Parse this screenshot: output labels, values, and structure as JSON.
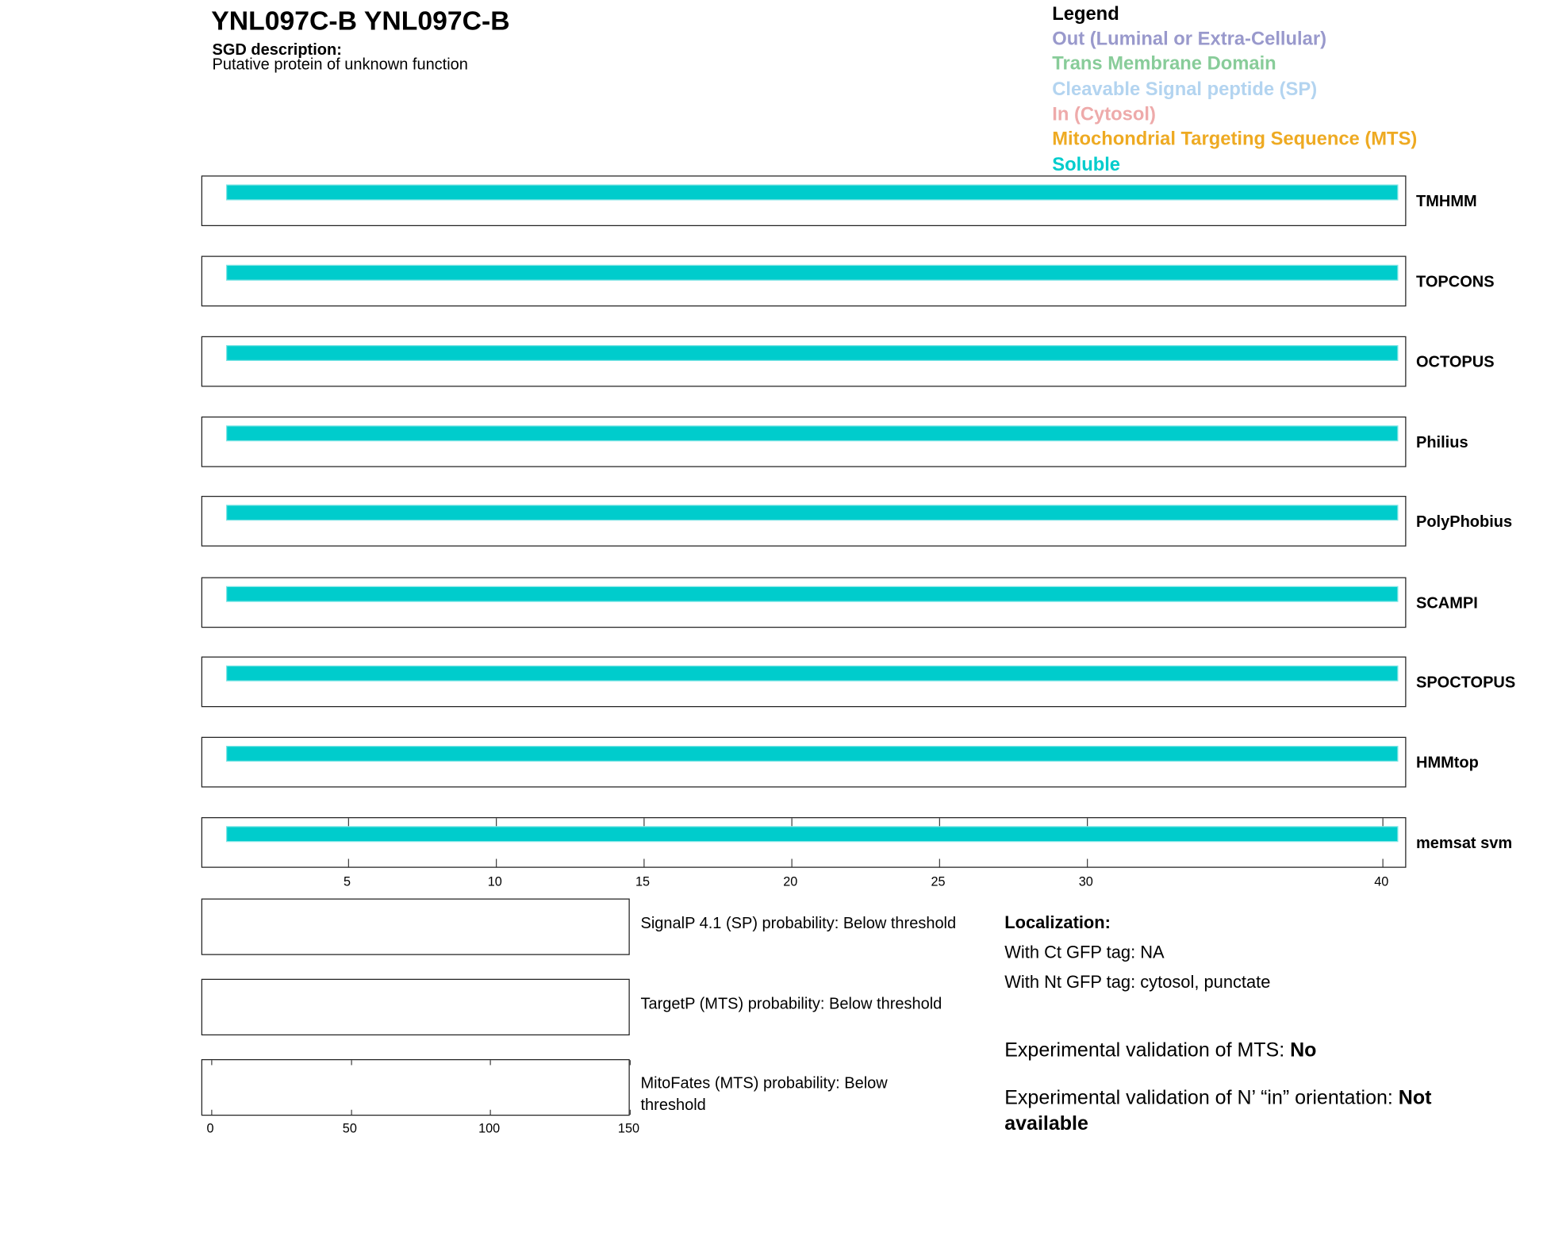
{
  "header": {
    "title": "YNL097C-B  YNL097C-B",
    "sgd_label": "SGD description:",
    "sgd_text": "Putative protein of unknown function"
  },
  "legend": {
    "title": "Legend",
    "items": [
      {
        "label": "Out (Luminal or Extra-Cellular)",
        "color": "#9999cc"
      },
      {
        "label": "Trans Membrane Domain",
        "color": "#88cc99"
      },
      {
        "label": "Cleavable Signal peptide (SP)",
        "color": "#b3d4f0"
      },
      {
        "label": "In (Cytosol)",
        "color": "#eeaaaa"
      },
      {
        "label": "Mitochondrial Targeting Sequence (MTS)",
        "color": "#eeaa22"
      },
      {
        "label": "Soluble",
        "color": "#00cccc"
      }
    ]
  },
  "chart_data": {
    "type": "bar",
    "protein_length": 40,
    "xticks": [
      5,
      10,
      15,
      20,
      25,
      30,
      40
    ],
    "xlim": [
      0.5,
      40.5
    ],
    "tracks": [
      {
        "name": "TMHMM",
        "segments": [
          {
            "start": 1,
            "end": 40,
            "type": "Soluble"
          }
        ]
      },
      {
        "name": "TOPCONS",
        "segments": [
          {
            "start": 1,
            "end": 40,
            "type": "Soluble"
          }
        ]
      },
      {
        "name": "OCTOPUS",
        "segments": [
          {
            "start": 1,
            "end": 40,
            "type": "Soluble"
          }
        ]
      },
      {
        "name": "Philius",
        "segments": [
          {
            "start": 1,
            "end": 40,
            "type": "Soluble"
          }
        ]
      },
      {
        "name": "PolyPhobius",
        "segments": [
          {
            "start": 1,
            "end": 40,
            "type": "Soluble"
          }
        ]
      },
      {
        "name": "SCAMPI",
        "segments": [
          {
            "start": 1,
            "end": 40,
            "type": "Soluble"
          }
        ]
      },
      {
        "name": "SPOCTOPUS",
        "segments": [
          {
            "start": 1,
            "end": 40,
            "type": "Soluble"
          }
        ]
      },
      {
        "name": "HMMtop",
        "segments": [
          {
            "start": 1,
            "end": 40,
            "type": "Soluble"
          }
        ]
      },
      {
        "name": "memsat svm",
        "segments": [
          {
            "start": 1,
            "end": 40,
            "type": "Soluble"
          }
        ]
      }
    ],
    "prob_panels": [
      {
        "label": "SignalP 4.1 (SP) probability: Below threshold"
      },
      {
        "label": "TargetP (MTS) probability: Below threshold"
      },
      {
        "label": "MitoFates (MTS) probability: Below threshold"
      }
    ],
    "prob_xticks": [
      0,
      50,
      100,
      150
    ],
    "prob_xlim": [
      0,
      150
    ]
  },
  "localization": {
    "title": "Localization:",
    "ct": "With Ct GFP tag: NA",
    "nt": "With Nt GFP tag: cytosol, punctate"
  },
  "validation": {
    "mts_label": "Experimental validation of MTS: ",
    "mts_value": "No",
    "nin_label": "Experimental validation of N’ “in” orientation: ",
    "nin_value": "Not available"
  }
}
